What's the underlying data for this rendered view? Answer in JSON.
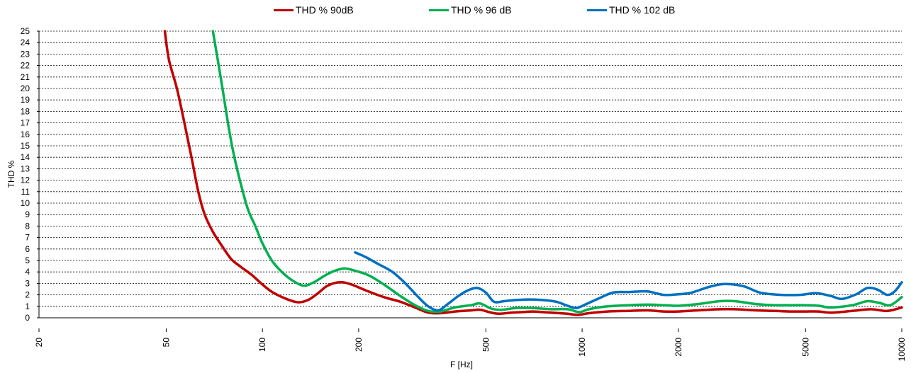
{
  "chart_data": {
    "type": "line",
    "xlabel": "F [Hz]",
    "ylabel": "THD  %",
    "x_scale": "log",
    "xlim": [
      20,
      10000
    ],
    "ylim": [
      0,
      25
    ],
    "x_ticks": [
      "20",
      "50",
      "100",
      "200",
      "500",
      "1000",
      "2000",
      "5000",
      "10000"
    ],
    "y_ticks": [
      "0",
      "1",
      "2",
      "3",
      "4",
      "5",
      "6",
      "7",
      "8",
      "9",
      "10",
      "11",
      "12",
      "13",
      "14",
      "15",
      "16",
      "17",
      "18",
      "19",
      "20",
      "21",
      "22",
      "23",
      "24",
      "25"
    ],
    "grid": true,
    "legend_position": "top",
    "series": [
      {
        "name": "THD % 90dB",
        "color": "#c00000",
        "points": [
          [
            49.5,
            25
          ],
          [
            51,
            22.5
          ],
          [
            54,
            20
          ],
          [
            57,
            17
          ],
          [
            60,
            14
          ],
          [
            63,
            11
          ],
          [
            66,
            9
          ],
          [
            70,
            7.5
          ],
          [
            75,
            6.2
          ],
          [
            80,
            5.1
          ],
          [
            86,
            4.4
          ],
          [
            93,
            3.7
          ],
          [
            100,
            2.9
          ],
          [
            108,
            2.2
          ],
          [
            120,
            1.6
          ],
          [
            130,
            1.35
          ],
          [
            140,
            1.6
          ],
          [
            150,
            2.2
          ],
          [
            160,
            2.8
          ],
          [
            175,
            3.1
          ],
          [
            190,
            2.9
          ],
          [
            210,
            2.4
          ],
          [
            240,
            1.8
          ],
          [
            270,
            1.4
          ],
          [
            300,
            0.9
          ],
          [
            330,
            0.45
          ],
          [
            360,
            0.4
          ],
          [
            400,
            0.55
          ],
          [
            450,
            0.65
          ],
          [
            480,
            0.7
          ],
          [
            520,
            0.45
          ],
          [
            550,
            0.35
          ],
          [
            600,
            0.45
          ],
          [
            650,
            0.5
          ],
          [
            700,
            0.55
          ],
          [
            750,
            0.5
          ],
          [
            800,
            0.45
          ],
          [
            900,
            0.35
          ],
          [
            970,
            0.25
          ],
          [
            1050,
            0.4
          ],
          [
            1200,
            0.55
          ],
          [
            1400,
            0.6
          ],
          [
            1600,
            0.65
          ],
          [
            1800,
            0.55
          ],
          [
            2000,
            0.55
          ],
          [
            2300,
            0.65
          ],
          [
            2700,
            0.75
          ],
          [
            3000,
            0.75
          ],
          [
            3500,
            0.65
          ],
          [
            4000,
            0.6
          ],
          [
            4500,
            0.55
          ],
          [
            5000,
            0.55
          ],
          [
            5500,
            0.55
          ],
          [
            6000,
            0.45
          ],
          [
            7000,
            0.6
          ],
          [
            8000,
            0.75
          ],
          [
            9000,
            0.6
          ],
          [
            10000,
            0.9
          ]
        ]
      },
      {
        "name": "THD % 96 dB",
        "color": "#00b050",
        "points": [
          [
            70,
            25
          ],
          [
            72,
            23
          ],
          [
            75,
            20
          ],
          [
            78,
            17
          ],
          [
            81,
            14.5
          ],
          [
            85,
            12
          ],
          [
            90,
            9.5
          ],
          [
            95,
            8
          ],
          [
            100,
            6.5
          ],
          [
            107,
            5
          ],
          [
            115,
            4
          ],
          [
            125,
            3.2
          ],
          [
            135,
            2.8
          ],
          [
            145,
            3.1
          ],
          [
            155,
            3.6
          ],
          [
            165,
            4
          ],
          [
            180,
            4.3
          ],
          [
            195,
            4.1
          ],
          [
            215,
            3.7
          ],
          [
            240,
            2.9
          ],
          [
            270,
            1.9
          ],
          [
            300,
            1.1
          ],
          [
            330,
            0.6
          ],
          [
            360,
            0.55
          ],
          [
            400,
            0.9
          ],
          [
            450,
            1.1
          ],
          [
            480,
            1.25
          ],
          [
            520,
            0.8
          ],
          [
            560,
            0.7
          ],
          [
            620,
            0.85
          ],
          [
            700,
            0.85
          ],
          [
            800,
            0.75
          ],
          [
            900,
            0.75
          ],
          [
            980,
            0.5
          ],
          [
            1050,
            0.75
          ],
          [
            1200,
            1
          ],
          [
            1400,
            1.1
          ],
          [
            1600,
            1.15
          ],
          [
            1800,
            1.1
          ],
          [
            2000,
            1.05
          ],
          [
            2300,
            1.2
          ],
          [
            2700,
            1.45
          ],
          [
            3000,
            1.45
          ],
          [
            3500,
            1.2
          ],
          [
            4000,
            1.1
          ],
          [
            5000,
            1.1
          ],
          [
            5500,
            1.05
          ],
          [
            6000,
            0.9
          ],
          [
            7000,
            1.1
          ],
          [
            7800,
            1.45
          ],
          [
            8500,
            1.3
          ],
          [
            9200,
            1.1
          ],
          [
            10000,
            1.8
          ]
        ]
      },
      {
        "name": "THD % 102 dB",
        "color": "#0070c0",
        "points": [
          [
            195,
            5.7
          ],
          [
            210,
            5.3
          ],
          [
            230,
            4.7
          ],
          [
            255,
            4
          ],
          [
            280,
            3
          ],
          [
            305,
            1.9
          ],
          [
            330,
            1
          ],
          [
            355,
            0.65
          ],
          [
            380,
            1.2
          ],
          [
            410,
            1.9
          ],
          [
            440,
            2.4
          ],
          [
            470,
            2.6
          ],
          [
            500,
            2.2
          ],
          [
            530,
            1.4
          ],
          [
            570,
            1.45
          ],
          [
            620,
            1.55
          ],
          [
            680,
            1.6
          ],
          [
            750,
            1.55
          ],
          [
            830,
            1.4
          ],
          [
            900,
            1.05
          ],
          [
            960,
            0.85
          ],
          [
            1030,
            1.2
          ],
          [
            1130,
            1.7
          ],
          [
            1250,
            2.2
          ],
          [
            1400,
            2.25
          ],
          [
            1600,
            2.3
          ],
          [
            1800,
            2
          ],
          [
            2000,
            2.05
          ],
          [
            2200,
            2.2
          ],
          [
            2500,
            2.7
          ],
          [
            2800,
            2.95
          ],
          [
            3200,
            2.75
          ],
          [
            3600,
            2.2
          ],
          [
            4200,
            2
          ],
          [
            4800,
            2
          ],
          [
            5400,
            2.15
          ],
          [
            6000,
            1.9
          ],
          [
            6500,
            1.65
          ],
          [
            7200,
            2.05
          ],
          [
            7800,
            2.6
          ],
          [
            8400,
            2.45
          ],
          [
            9000,
            2
          ],
          [
            9500,
            2.3
          ],
          [
            10000,
            3.1
          ]
        ]
      }
    ]
  }
}
